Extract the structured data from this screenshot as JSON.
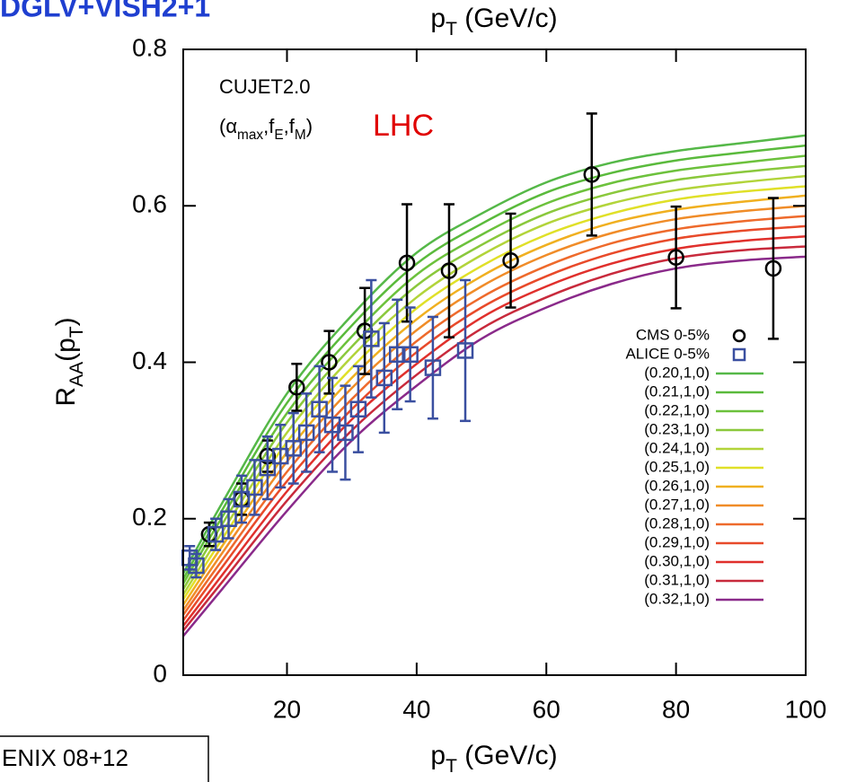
{
  "chart_data": {
    "type": "line",
    "title": "DGLV+VISH2+1",
    "footer_box": "ENIX 08+12",
    "annotation_model": "CUJET2.0",
    "annotation_params": [
      "(α",
      "max",
      ",f",
      "E",
      ",f",
      "M",
      ")"
    ],
    "annotation_energy": "LHC",
    "xlabel": [
      "p",
      "T",
      " (GeV/c)"
    ],
    "x2label": [
      "p",
      "T",
      " (GeV/c)"
    ],
    "ylabel": [
      "R",
      "AA",
      "(p",
      "T",
      ")"
    ],
    "xlim": [
      4,
      100
    ],
    "ylim": [
      0,
      0.8
    ],
    "xticks": [
      20,
      40,
      60,
      80,
      100
    ],
    "yticks": [
      0,
      0.2,
      0.4,
      0.6,
      0.8
    ],
    "x": [
      4,
      10,
      20,
      30,
      40,
      50,
      60,
      70,
      80,
      90,
      100
    ],
    "series": [
      {
        "name": "(0.20,1,0)",
        "color": "#55b848",
        "values": [
          0.13,
          0.22,
          0.36,
          0.46,
          0.54,
          0.59,
          0.63,
          0.655,
          0.67,
          0.68,
          0.69
        ]
      },
      {
        "name": "(0.21,1,0)",
        "color": "#5aba3c",
        "values": [
          0.123,
          0.211,
          0.348,
          0.447,
          0.526,
          0.577,
          0.617,
          0.642,
          0.658,
          0.668,
          0.677
        ]
      },
      {
        "name": "(0.22,1,0)",
        "color": "#6cc13c",
        "values": [
          0.117,
          0.202,
          0.335,
          0.433,
          0.512,
          0.563,
          0.603,
          0.629,
          0.645,
          0.655,
          0.664
        ]
      },
      {
        "name": "(0.23,1,0)",
        "color": "#8ac83c",
        "values": [
          0.11,
          0.193,
          0.323,
          0.42,
          0.498,
          0.55,
          0.59,
          0.616,
          0.633,
          0.643,
          0.651
        ]
      },
      {
        "name": "(0.24,1,0)",
        "color": "#b2d43a",
        "values": [
          0.103,
          0.183,
          0.31,
          0.407,
          0.483,
          0.537,
          0.577,
          0.603,
          0.62,
          0.63,
          0.638
        ]
      },
      {
        "name": "(0.25,1,0)",
        "color": "#e0e028",
        "values": [
          0.097,
          0.174,
          0.298,
          0.393,
          0.469,
          0.523,
          0.563,
          0.59,
          0.608,
          0.618,
          0.625
        ]
      },
      {
        "name": "(0.26,1,0)",
        "color": "#f0b020",
        "values": [
          0.09,
          0.165,
          0.285,
          0.38,
          0.455,
          0.51,
          0.55,
          0.578,
          0.595,
          0.605,
          0.613
        ]
      },
      {
        "name": "(0.27,1,0)",
        "color": "#f08c28",
        "values": [
          0.083,
          0.156,
          0.273,
          0.367,
          0.441,
          0.497,
          0.537,
          0.565,
          0.583,
          0.593,
          0.6
        ]
      },
      {
        "name": "(0.28,1,0)",
        "color": "#ee6a2c",
        "values": [
          0.077,
          0.147,
          0.26,
          0.353,
          0.427,
          0.483,
          0.523,
          0.552,
          0.57,
          0.58,
          0.587
        ]
      },
      {
        "name": "(0.29,1,0)",
        "color": "#e84a2a",
        "values": [
          0.07,
          0.138,
          0.248,
          0.34,
          0.413,
          0.47,
          0.51,
          0.539,
          0.558,
          0.568,
          0.574
        ]
      },
      {
        "name": "(0.30,1,0)",
        "color": "#e0302c",
        "values": [
          0.063,
          0.128,
          0.235,
          0.327,
          0.398,
          0.457,
          0.497,
          0.526,
          0.545,
          0.555,
          0.561
        ]
      },
      {
        "name": "(0.31,1,0)",
        "color": "#c82a3c",
        "values": [
          0.057,
          0.119,
          0.223,
          0.313,
          0.384,
          0.443,
          0.483,
          0.513,
          0.533,
          0.543,
          0.548
        ]
      },
      {
        "name": "(0.32,1,0)",
        "color": "#8a2a8a",
        "values": [
          0.05,
          0.11,
          0.21,
          0.3,
          0.37,
          0.43,
          0.47,
          0.5,
          0.52,
          0.53,
          0.535
        ]
      }
    ],
    "points": [
      {
        "name": "CMS 0-5%",
        "color": "#000000",
        "marker": "circle",
        "x": [
          8,
          13,
          17,
          21.5,
          26.5,
          32,
          38.5,
          45,
          54.5,
          67,
          80,
          95
        ],
        "values": [
          0.18,
          0.225,
          0.28,
          0.368,
          0.4,
          0.44,
          0.527,
          0.517,
          0.53,
          0.64,
          0.534,
          0.52
        ],
        "errors": [
          0.015,
          0.02,
          0.02,
          0.03,
          0.04,
          0.055,
          0.075,
          0.085,
          0.06,
          0.078,
          0.065,
          0.09
        ]
      },
      {
        "name": "ALICE 0-5%",
        "color": "#3a4fa0",
        "marker": "square",
        "x": [
          5,
          6,
          9,
          11,
          13,
          15,
          17,
          19,
          21,
          23,
          25,
          27,
          29,
          31,
          33,
          35,
          37,
          39,
          42.5,
          47.5
        ],
        "values": [
          0.15,
          0.14,
          0.18,
          0.2,
          0.225,
          0.24,
          0.265,
          0.28,
          0.29,
          0.31,
          0.34,
          0.32,
          0.31,
          0.34,
          0.43,
          0.38,
          0.41,
          0.41,
          0.393,
          0.415
        ],
        "errors": [
          0.015,
          0.015,
          0.02,
          0.025,
          0.03,
          0.035,
          0.04,
          0.04,
          0.045,
          0.05,
          0.055,
          0.06,
          0.06,
          0.055,
          0.075,
          0.07,
          0.07,
          0.06,
          0.065,
          0.09
        ]
      }
    ]
  }
}
